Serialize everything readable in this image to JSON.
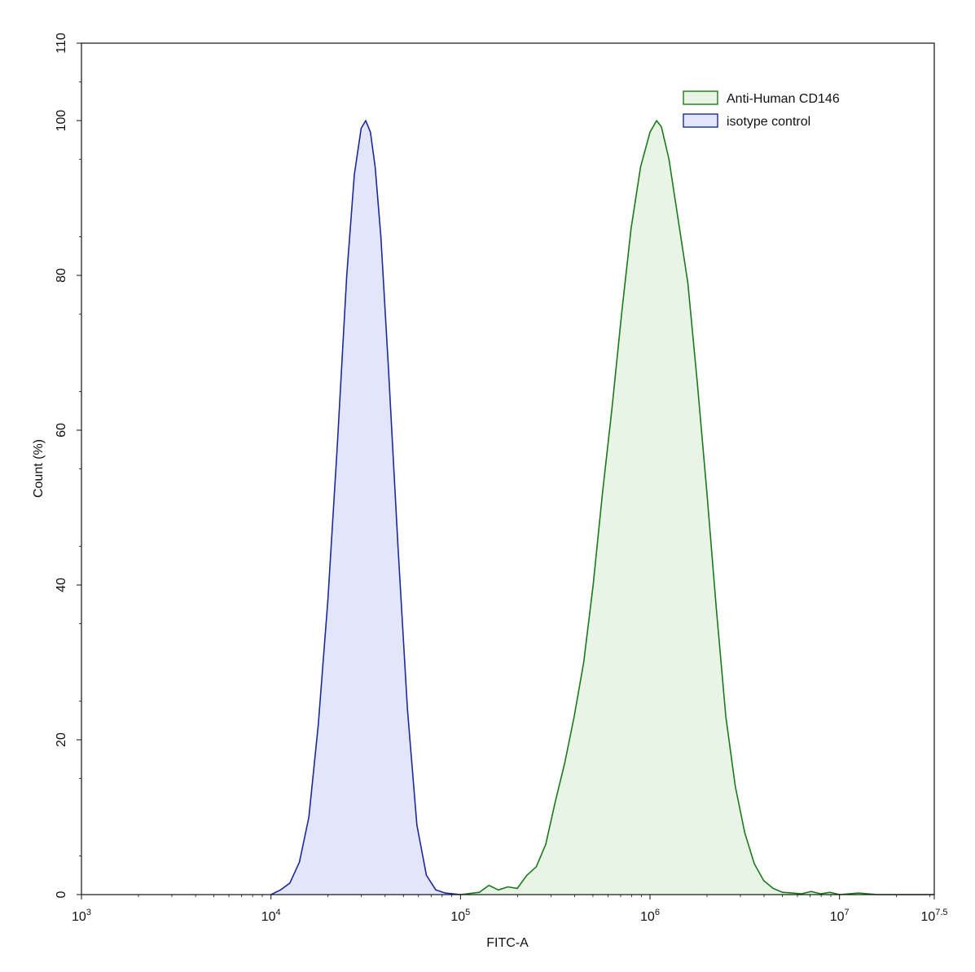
{
  "chart_data": {
    "type": "area",
    "xlabel": "FITC-A",
    "ylabel": "Count  (%)",
    "x_scale": "log10",
    "xlim": [
      1000,
      31622777
    ],
    "ylim": [
      0,
      110
    ],
    "x_ticks": [
      {
        "value": 1000,
        "base": "10",
        "exp": "3"
      },
      {
        "value": 10000,
        "base": "10",
        "exp": "4"
      },
      {
        "value": 100000,
        "base": "10",
        "exp": "5"
      },
      {
        "value": 1000000,
        "base": "10",
        "exp": "6"
      },
      {
        "value": 10000000,
        "base": "10",
        "exp": "7"
      },
      {
        "value": 31622777,
        "base": "10",
        "exp": "7.5"
      }
    ],
    "y_ticks": [
      0,
      20,
      40,
      60,
      80,
      100,
      110
    ],
    "grid": false,
    "legend_position": "top-right",
    "series": [
      {
        "name": "Anti-Human CD146",
        "color": "#1a7a1a",
        "fill": "#e8f4e6",
        "points": [
          [
            100000,
            0
          ],
          [
            125893,
            0.3
          ],
          [
            141254,
            1.2
          ],
          [
            158489,
            0.6
          ],
          [
            177828,
            1.0
          ],
          [
            199526,
            0.8
          ],
          [
            223872,
            2.5
          ],
          [
            251189,
            3.6
          ],
          [
            281838,
            6.5
          ],
          [
            316228,
            12
          ],
          [
            354813,
            17
          ],
          [
            398107,
            23
          ],
          [
            446684,
            30
          ],
          [
            501187,
            40
          ],
          [
            562341,
            52
          ],
          [
            630957,
            63
          ],
          [
            707946,
            75
          ],
          [
            794328,
            86
          ],
          [
            891251,
            94
          ],
          [
            1000000,
            98.5
          ],
          [
            1083927,
            100
          ],
          [
            1148154,
            99.2
          ],
          [
            1258925,
            95
          ],
          [
            1412538,
            87
          ],
          [
            1584893,
            79
          ],
          [
            1778279,
            66
          ],
          [
            1995262,
            52
          ],
          [
            2238721,
            37
          ],
          [
            2511886,
            23
          ],
          [
            2818383,
            14
          ],
          [
            3162278,
            8
          ],
          [
            3548134,
            4
          ],
          [
            3981072,
            1.8
          ],
          [
            4466836,
            0.8
          ],
          [
            5011872,
            0.3
          ],
          [
            5623413,
            0.2
          ],
          [
            6309573,
            0.1
          ],
          [
            7079458,
            0.4
          ],
          [
            7943282,
            0.1
          ],
          [
            8912509,
            0.3
          ],
          [
            10000000,
            0
          ],
          [
            12589254,
            0.2
          ],
          [
            15848932,
            0
          ],
          [
            31622777,
            0
          ]
        ]
      },
      {
        "name": "isotype control",
        "color": "#1a2a9a",
        "fill": "#e3e5fa",
        "points": [
          [
            10000,
            0
          ],
          [
            11220,
            0.6
          ],
          [
            12589,
            1.5
          ],
          [
            14125,
            4.2
          ],
          [
            15849,
            10
          ],
          [
            17783,
            22
          ],
          [
            19953,
            38
          ],
          [
            22387,
            58
          ],
          [
            25119,
            80
          ],
          [
            27542,
            93
          ],
          [
            29923,
            99
          ],
          [
            31623,
            100
          ],
          [
            33497,
            98.5
          ],
          [
            35481,
            94
          ],
          [
            38019,
            85
          ],
          [
            41687,
            68
          ],
          [
            46774,
            45
          ],
          [
            52481,
            24
          ],
          [
            58884,
            9
          ],
          [
            66069,
            2.5
          ],
          [
            74131,
            0.6
          ],
          [
            83176,
            0.2
          ],
          [
            100000,
            0
          ]
        ]
      }
    ]
  }
}
